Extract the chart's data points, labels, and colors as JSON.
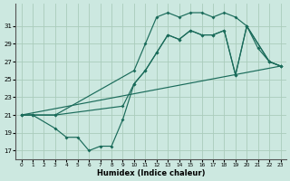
{
  "xlabel": "Humidex (Indice chaleur)",
  "background_color": "#cce8e0",
  "grid_color": "#aaccbb",
  "line_color": "#1a6b5a",
  "xlim": [
    -0.5,
    23.5
  ],
  "ylim": [
    16.0,
    33.5
  ],
  "xticks": [
    0,
    1,
    2,
    3,
    4,
    5,
    6,
    7,
    8,
    9,
    10,
    11,
    12,
    13,
    14,
    15,
    16,
    17,
    18,
    19,
    20,
    21,
    22,
    23
  ],
  "yticks": [
    17,
    19,
    21,
    23,
    25,
    27,
    29,
    31
  ],
  "series": [
    {
      "x": [
        0,
        1,
        3,
        10,
        11,
        12,
        13,
        14,
        15,
        16,
        17,
        18,
        19,
        20,
        21,
        22,
        23
      ],
      "y": [
        21,
        21,
        21,
        26,
        29,
        32,
        32.5,
        32,
        32.5,
        32.5,
        32,
        32.5,
        32,
        31,
        28.5,
        27,
        26.5
      ]
    },
    {
      "x": [
        0,
        1,
        3,
        9,
        10,
        11,
        12,
        13,
        14,
        15,
        16,
        17,
        18,
        19,
        20,
        22,
        23
      ],
      "y": [
        21,
        21,
        21,
        22,
        24.5,
        26,
        28,
        30,
        29.5,
        30.5,
        30,
        30,
        30.5,
        25.5,
        31,
        27,
        26.5
      ]
    },
    {
      "x": [
        0,
        1,
        3,
        4,
        5,
        6,
        7,
        8,
        9,
        10,
        11,
        12,
        13,
        14,
        15,
        16,
        17,
        18,
        19,
        20,
        22,
        23
      ],
      "y": [
        21,
        21,
        19.5,
        18.5,
        18.5,
        17,
        17.5,
        17.5,
        20.5,
        24.5,
        26,
        28,
        30,
        29.5,
        30.5,
        30,
        30,
        30.5,
        25.5,
        31,
        27,
        26.5
      ]
    },
    {
      "x": [
        0,
        23
      ],
      "y": [
        21,
        26.5
      ]
    }
  ]
}
